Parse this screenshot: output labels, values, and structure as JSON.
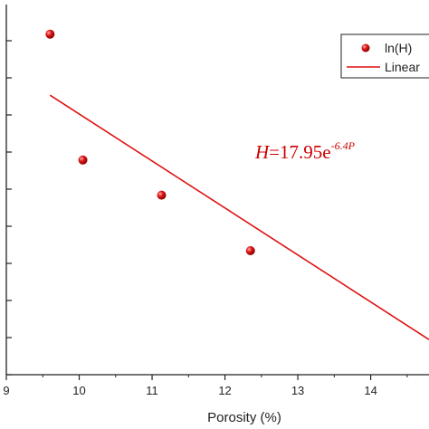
{
  "chart_data": {
    "type": "scatter",
    "xlabel": "Porosity (%)",
    "ylabel": "",
    "x_ticks": [
      "9",
      "10",
      "11",
      "12",
      "13",
      "14"
    ],
    "xlim": [
      9,
      14.8
    ],
    "series": [
      {
        "name": "ln(H)",
        "kind": "points",
        "color": "#dd1111",
        "points": [
          {
            "x": 9.6,
            "y": 0.92
          },
          {
            "x": 10.05,
            "y": 0.58
          },
          {
            "x": 11.13,
            "y": 0.485
          },
          {
            "x": 12.35,
            "y": 0.335
          }
        ]
      },
      {
        "name": "Linear",
        "kind": "line",
        "color": "#dd1111",
        "points": [
          {
            "x": 9.6,
            "y": 0.755
          },
          {
            "x": 14.8,
            "y": 0.095
          }
        ]
      }
    ],
    "annotation": {
      "base": "H",
      "middle": "=17.95e",
      "superscript": "-6.4P"
    },
    "legend_position": "top-right"
  }
}
